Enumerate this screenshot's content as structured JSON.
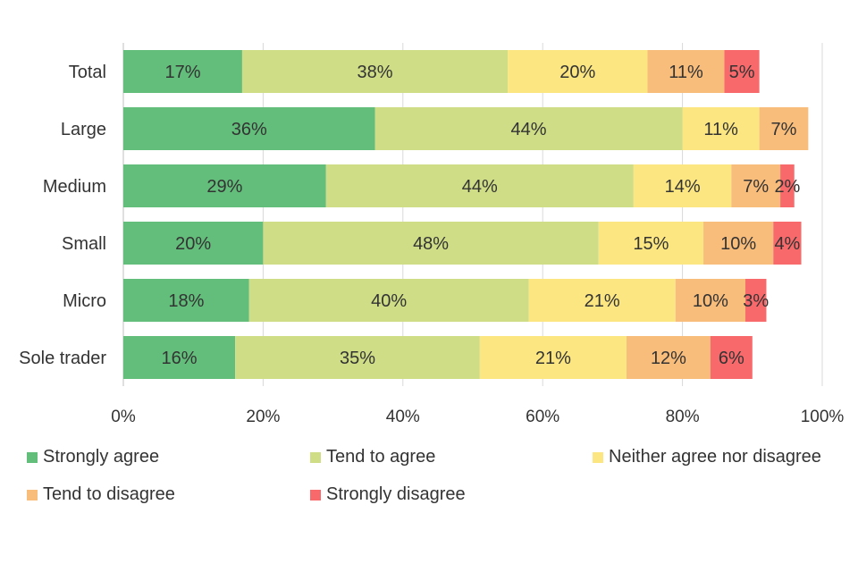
{
  "chart_data": {
    "type": "bar",
    "orientation": "horizontal",
    "stacked": true,
    "title": "",
    "xlabel": "",
    "ylabel": "",
    "xlim": [
      0,
      100
    ],
    "x_ticks": [
      "0%",
      "20%",
      "40%",
      "60%",
      "80%",
      "100%"
    ],
    "grid": true,
    "legend_position": "bottom",
    "categories": [
      "Total",
      "Large",
      "Medium",
      "Small",
      "Micro",
      "Sole trader"
    ],
    "series": [
      {
        "name": "Strongly agree",
        "color": "#63be7b",
        "values": [
          17,
          36,
          29,
          20,
          18,
          16
        ]
      },
      {
        "name": "Tend to agree",
        "color": "#cfdd87",
        "values": [
          38,
          44,
          44,
          48,
          40,
          35
        ]
      },
      {
        "name": "Neither agree nor disagree",
        "color": "#fbe682",
        "values": [
          20,
          11,
          14,
          15,
          21,
          21
        ]
      },
      {
        "name": "Tend to disagree",
        "color": "#f8bc7b",
        "values": [
          11,
          7,
          7,
          10,
          10,
          12
        ]
      },
      {
        "name": "Strongly disagree",
        "color": "#f8696b",
        "values": [
          5,
          0,
          2,
          4,
          3,
          6
        ]
      }
    ],
    "data_labels": [
      [
        "17%",
        "38%",
        "20%",
        "11%",
        "5%"
      ],
      [
        "36%",
        "44%",
        "11%",
        "7%",
        ""
      ],
      [
        "29%",
        "44%",
        "14%",
        "7%",
        "2%"
      ],
      [
        "20%",
        "48%",
        "15%",
        "10%",
        "4%"
      ],
      [
        "18%",
        "40%",
        "21%",
        "10%",
        "3%"
      ],
      [
        "16%",
        "35%",
        "21%",
        "12%",
        "6%"
      ]
    ]
  }
}
